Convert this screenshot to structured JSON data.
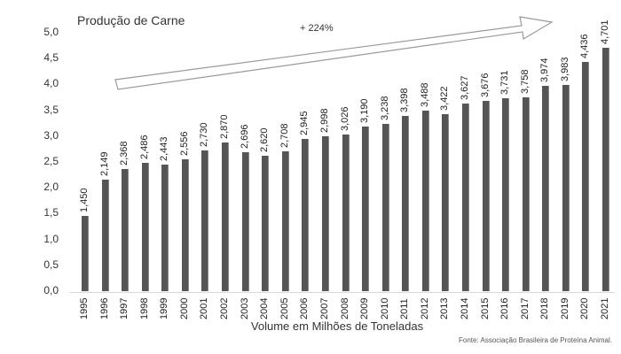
{
  "chart_data": {
    "type": "bar",
    "title": "Produção de Carne",
    "xlabel": "Volume em Milhões de Toneladas",
    "ylabel": "",
    "ylim": [
      0,
      5.0
    ],
    "yticks": [
      "0,0",
      "0,5",
      "1,0",
      "1,5",
      "2,0",
      "2,5",
      "3,0",
      "3,5",
      "4,0",
      "4,5",
      "5,0"
    ],
    "grid": false,
    "legend": null,
    "categories": [
      "1995",
      "1996",
      "1997",
      "1998",
      "1999",
      "2000",
      "2001",
      "2002",
      "2003",
      "2004",
      "2005",
      "2006",
      "2007",
      "2008",
      "2009",
      "2010",
      "2011",
      "2012",
      "2013",
      "2014",
      "2015",
      "2016",
      "2017",
      "2018",
      "2019",
      "2020",
      "2021"
    ],
    "values": [
      1.45,
      2.149,
      2.368,
      2.486,
      2.443,
      2.556,
      2.73,
      2.87,
      2.696,
      2.62,
      2.708,
      2.945,
      2.998,
      3.026,
      3.19,
      3.238,
      3.398,
      3.488,
      3.422,
      3.627,
      3.676,
      3.731,
      3.758,
      3.974,
      3.983,
      4.436,
      4.701
    ],
    "value_labels": [
      "1,450",
      "2,149",
      "2,368",
      "2,486",
      "2,443",
      "2,556",
      "2,730",
      "2,870",
      "2,696",
      "2,620",
      "2,708",
      "2,945",
      "2,998",
      "3,026",
      "3,190",
      "3,238",
      "3,398",
      "3,488",
      "3,422",
      "3,627",
      "3,676",
      "3,731",
      "3,758",
      "3,974",
      "3,983",
      "4,436",
      "4,701"
    ],
    "annotations": [
      {
        "text": "+ 224%",
        "type": "arrow",
        "direction": "up-right"
      }
    ],
    "source": "Fonte: Associação Brasileira de Proteína Animal.",
    "bar_color": "#555555"
  }
}
